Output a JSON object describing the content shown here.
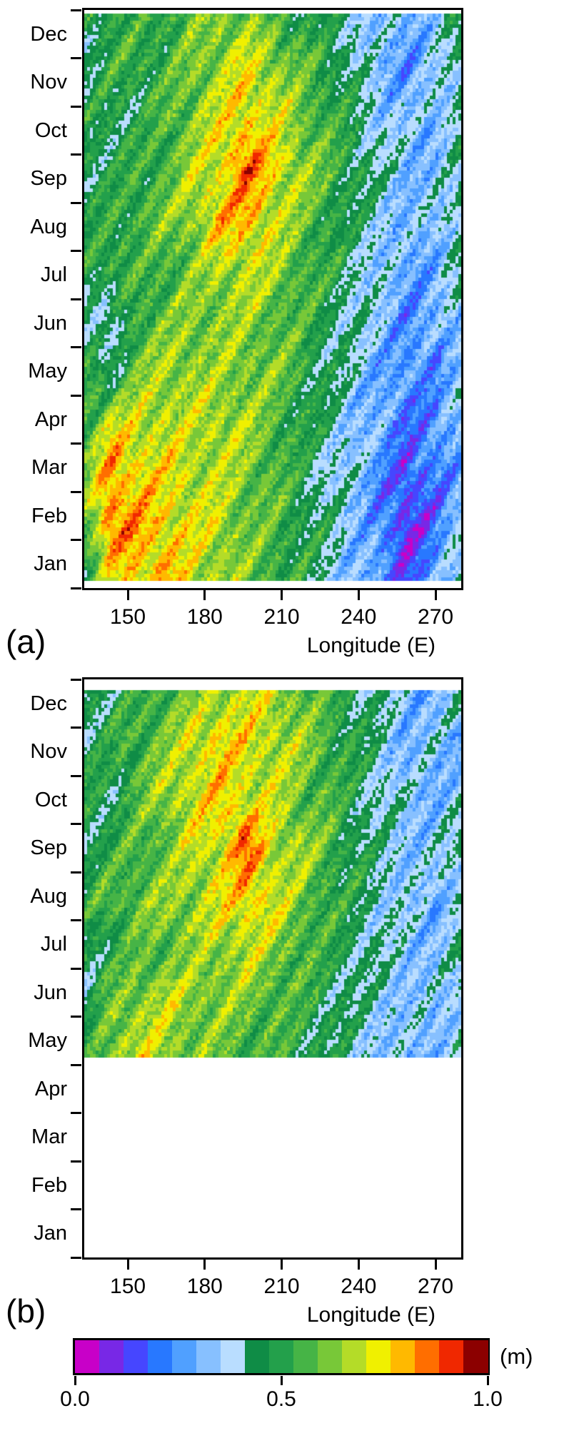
{
  "figure": {
    "background": "#ffffff"
  },
  "chart_data": [
    {
      "type": "heatmap",
      "panel_label": "(a)",
      "xlabel": "Longitude (E)",
      "x_range": [
        133,
        280
      ],
      "x_ticks": [
        "150",
        "180",
        "210",
        "240",
        "270"
      ],
      "x_tick_values": [
        150,
        180,
        210,
        240,
        270
      ],
      "y_categories_bottom_to_top": [
        "Jan",
        "Feb",
        "Mar",
        "Apr",
        "May",
        "Jun",
        "Jul",
        "Aug",
        "Sep",
        "Oct",
        "Nov",
        "Dec"
      ],
      "unit": "m",
      "value_range": [
        0,
        1
      ],
      "grid_lon_columns": [
        135,
        145,
        155,
        165,
        175,
        185,
        195,
        205,
        215,
        225,
        235,
        245,
        255,
        265,
        275
      ],
      "grid_month_rows_top_to_bottom": [
        "Dec",
        "Nov",
        "Oct",
        "Sep",
        "Aug",
        "Jul",
        "Jun",
        "May",
        "Apr",
        "Mar",
        "Feb",
        "Jan"
      ],
      "values": [
        [
          0.48,
          0.52,
          0.5,
          0.55,
          0.58,
          0.62,
          0.6,
          0.55,
          0.5,
          0.45,
          0.38,
          0.33,
          0.3,
          0.36,
          0.46
        ],
        [
          0.42,
          0.5,
          0.55,
          0.52,
          0.6,
          0.66,
          0.72,
          0.66,
          0.58,
          0.5,
          0.44,
          0.3,
          0.26,
          0.32,
          0.42
        ],
        [
          0.46,
          0.5,
          0.46,
          0.56,
          0.62,
          0.7,
          0.76,
          0.7,
          0.62,
          0.55,
          0.45,
          0.36,
          0.3,
          0.34,
          0.44
        ],
        [
          0.5,
          0.46,
          0.52,
          0.56,
          0.66,
          0.72,
          0.86,
          0.76,
          0.66,
          0.56,
          0.5,
          0.4,
          0.34,
          0.3,
          0.4
        ],
        [
          0.46,
          0.52,
          0.56,
          0.6,
          0.66,
          0.76,
          0.8,
          0.7,
          0.6,
          0.54,
          0.44,
          0.38,
          0.3,
          0.34,
          0.44
        ],
        [
          0.5,
          0.55,
          0.5,
          0.56,
          0.6,
          0.66,
          0.7,
          0.64,
          0.58,
          0.5,
          0.44,
          0.34,
          0.28,
          0.3,
          0.4
        ],
        [
          0.44,
          0.34,
          0.56,
          0.6,
          0.62,
          0.64,
          0.62,
          0.6,
          0.54,
          0.48,
          0.4,
          0.34,
          0.24,
          0.28,
          0.36
        ],
        [
          0.5,
          0.46,
          0.62,
          0.66,
          0.66,
          0.62,
          0.64,
          0.6,
          0.54,
          0.44,
          0.38,
          0.28,
          0.24,
          0.24,
          0.34
        ],
        [
          0.56,
          0.72,
          0.7,
          0.7,
          0.66,
          0.7,
          0.64,
          0.58,
          0.5,
          0.44,
          0.34,
          0.28,
          0.2,
          0.24,
          0.3
        ],
        [
          0.6,
          0.82,
          0.76,
          0.72,
          0.7,
          0.66,
          0.64,
          0.56,
          0.5,
          0.4,
          0.34,
          0.24,
          0.14,
          0.2,
          0.3
        ],
        [
          0.56,
          0.86,
          0.8,
          0.76,
          0.7,
          0.7,
          0.6,
          0.56,
          0.5,
          0.44,
          0.34,
          0.24,
          0.1,
          0.2,
          0.34
        ],
        [
          0.5,
          0.7,
          0.76,
          0.8,
          0.7,
          0.66,
          0.6,
          0.56,
          0.5,
          0.4,
          0.3,
          0.24,
          0.16,
          0.26,
          0.44
        ]
      ]
    },
    {
      "type": "heatmap",
      "panel_label": "(b)",
      "xlabel": "Longitude (E)",
      "x_range": [
        133,
        280
      ],
      "x_ticks": [
        "150",
        "180",
        "210",
        "240",
        "270"
      ],
      "x_tick_values": [
        150,
        180,
        210,
        240,
        270
      ],
      "y_categories_bottom_to_top": [
        "Jan",
        "Feb",
        "Mar",
        "Apr",
        "May",
        "Jun",
        "Jul",
        "Aug",
        "Sep",
        "Oct",
        "Nov",
        "Dec"
      ],
      "unit": "m",
      "value_range": [
        0,
        1
      ],
      "no_data_months": [
        "Jan",
        "Feb",
        "Mar",
        "Apr"
      ],
      "grid_lon_columns": [
        135,
        145,
        155,
        165,
        175,
        185,
        195,
        205,
        215,
        225,
        235,
        245,
        255,
        265,
        275
      ],
      "grid_month_rows_top_to_bottom": [
        "Dec",
        "Nov",
        "Oct",
        "Sep",
        "Aug",
        "Jul",
        "Jun",
        "May"
      ],
      "values": [
        [
          0.5,
          0.46,
          0.5,
          0.56,
          0.6,
          0.66,
          0.7,
          0.66,
          0.6,
          0.54,
          0.46,
          0.4,
          0.34,
          0.3,
          0.4
        ],
        [
          0.44,
          0.5,
          0.56,
          0.6,
          0.7,
          0.76,
          0.72,
          0.7,
          0.64,
          0.56,
          0.5,
          0.4,
          0.3,
          0.34,
          0.3
        ],
        [
          0.5,
          0.46,
          0.56,
          0.66,
          0.7,
          0.76,
          0.72,
          0.68,
          0.6,
          0.56,
          0.46,
          0.4,
          0.34,
          0.3,
          0.36
        ],
        [
          0.46,
          0.5,
          0.56,
          0.6,
          0.68,
          0.72,
          0.86,
          0.7,
          0.66,
          0.56,
          0.5,
          0.4,
          0.36,
          0.34,
          0.4
        ],
        [
          0.5,
          0.56,
          0.6,
          0.62,
          0.66,
          0.7,
          0.78,
          0.72,
          0.6,
          0.56,
          0.46,
          0.4,
          0.34,
          0.3,
          0.4
        ],
        [
          0.46,
          0.5,
          0.56,
          0.6,
          0.62,
          0.66,
          0.68,
          0.62,
          0.58,
          0.5,
          0.46,
          0.4,
          0.34,
          0.34,
          0.4
        ],
        [
          0.4,
          0.6,
          0.66,
          0.68,
          0.66,
          0.62,
          0.6,
          0.58,
          0.52,
          0.48,
          0.42,
          0.38,
          0.34,
          0.3,
          0.38
        ],
        [
          0.5,
          0.66,
          0.7,
          0.66,
          0.6,
          0.58,
          0.56,
          0.52,
          0.5,
          0.46,
          0.4,
          0.34,
          0.3,
          0.34,
          0.4
        ]
      ]
    },
    {
      "type": "colorbar",
      "label": "(m)",
      "orientation": "horizontal",
      "range": [
        0,
        1
      ],
      "tick_labels": [
        "0.0",
        "0.5",
        "1.0"
      ],
      "tick_values": [
        0,
        0.5,
        1
      ],
      "colors": [
        "#c800c8",
        "#7828e6",
        "#4646ff",
        "#2878ff",
        "#50a0ff",
        "#87c0ff",
        "#b9ddff",
        "#0f8c46",
        "#23a04b",
        "#46b446",
        "#78c838",
        "#b4dc28",
        "#f0f000",
        "#ffb900",
        "#ff6e00",
        "#f02800",
        "#8c0000"
      ]
    }
  ]
}
